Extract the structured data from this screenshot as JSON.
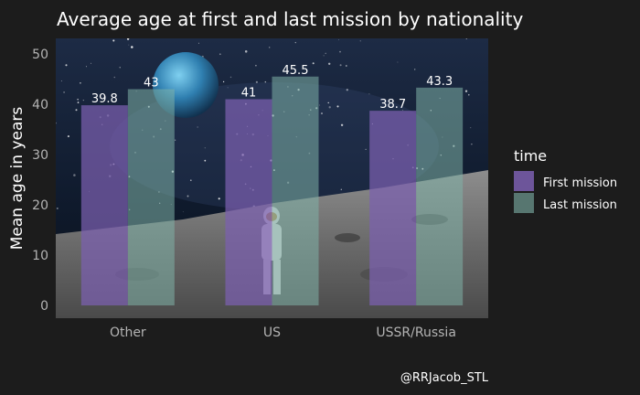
{
  "chart_data": {
    "type": "bar",
    "title": "Average age at first and last mission by nationality",
    "xlabel": "",
    "ylabel": "Mean age in years",
    "ylim": [
      0,
      52
    ],
    "yticks": [
      0,
      10,
      20,
      30,
      40,
      50
    ],
    "grid": false,
    "categories": [
      "Other",
      "US",
      "USSR/Russia"
    ],
    "legend": {
      "title": "time",
      "position": "right"
    },
    "series": [
      {
        "name": "First mission",
        "values": [
          39.8,
          41,
          38.7
        ],
        "labels": [
          "39.8",
          "41",
          "38.7"
        ],
        "color": "#7b5fb0"
      },
      {
        "name": "Last mission",
        "values": [
          43,
          45.5,
          43.3
        ],
        "labels": [
          "43",
          "45.5",
          "43.3"
        ],
        "color": "#7fb3a8"
      }
    ],
    "caption": "@RRJacob_STL"
  },
  "colors": {
    "background": "#1c1c1c",
    "text": "#ffffff",
    "tick_text": "#b4b4b4"
  }
}
